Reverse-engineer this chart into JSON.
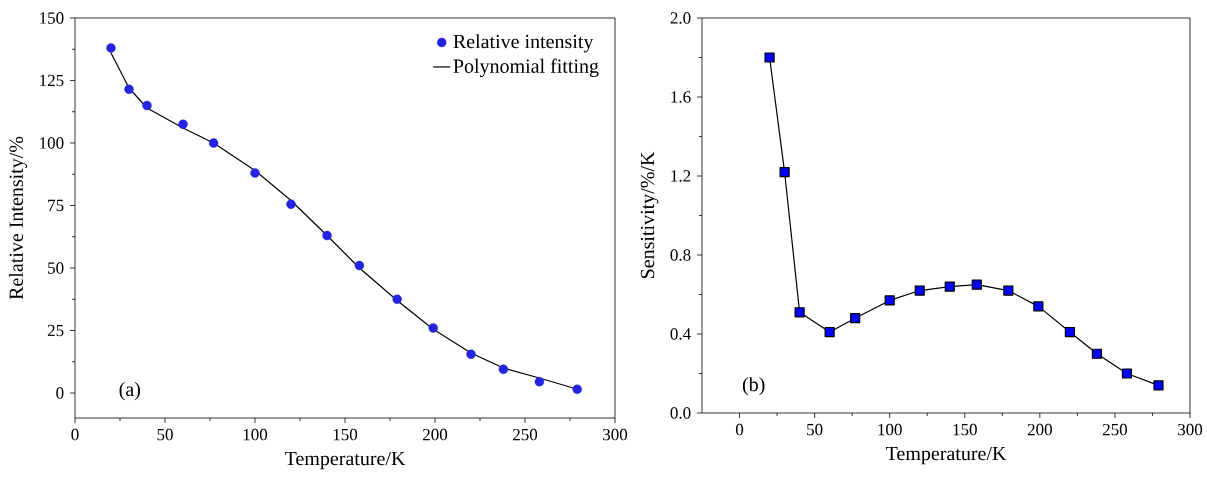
{
  "chart_data": [
    {
      "type": "scatter",
      "xlabel": "Temperature/K",
      "ylabel": "Relative Intensity/%",
      "annotations": [
        "(a)"
      ],
      "xlim": [
        0,
        300
      ],
      "ylim": [
        -10,
        150
      ],
      "xticks": [
        0,
        50,
        100,
        150,
        200,
        250,
        300
      ],
      "yticks": [
        0,
        25,
        50,
        75,
        100,
        125,
        150
      ],
      "legend": "top right",
      "grid": false,
      "series": [
        {
          "name": "Relative intensity",
          "type": "scatter",
          "marker": "circle",
          "color": "#2424e0",
          "x": [
            20,
            30,
            40,
            60,
            77,
            100,
            120,
            140,
            158,
            179,
            199,
            220,
            238,
            258,
            279
          ],
          "values": [
            138,
            121.5,
            115,
            107.5,
            100,
            88,
            75.5,
            63,
            51,
            37.5,
            26,
            15.5,
            9.5,
            4.5,
            1.5
          ]
        },
        {
          "name": "Polynomial fitting",
          "type": "line",
          "marker": "none",
          "color": "#000000",
          "x": [
            20,
            30,
            40,
            60,
            77,
            100,
            120,
            140,
            158,
            179,
            199,
            220,
            238,
            258,
            279
          ],
          "values": [
            136,
            122,
            114,
            106,
            100,
            89,
            77,
            63,
            50,
            37,
            25.5,
            16,
            10,
            6,
            1.5
          ]
        }
      ]
    },
    {
      "type": "line",
      "xlabel": "Temperature/K",
      "ylabel": "Sensitivity/%/K",
      "annotations": [
        "(b)"
      ],
      "xlim": [
        -25,
        300
      ],
      "ylim": [
        0,
        2.0
      ],
      "xticks": [
        0,
        50,
        100,
        150,
        200,
        250,
        300
      ],
      "yticks": [
        {
          "value": 0,
          "label": "0.0"
        },
        0.4,
        0.8,
        1.2,
        1.6,
        {
          "value": 2,
          "label": "2.0"
        }
      ],
      "legend": false,
      "grid": false,
      "marker": "square",
      "series": [
        {
          "color": "#0000ff",
          "x": [
            20,
            30,
            40,
            60,
            77,
            100,
            120,
            140,
            158,
            179,
            199,
            220,
            238,
            258,
            279
          ],
          "values": [
            1.8,
            1.22,
            0.51,
            0.41,
            0.48,
            0.57,
            0.62,
            0.64,
            0.65,
            0.62,
            0.54,
            0.41,
            0.3,
            0.2,
            0.14
          ]
        }
      ]
    }
  ]
}
